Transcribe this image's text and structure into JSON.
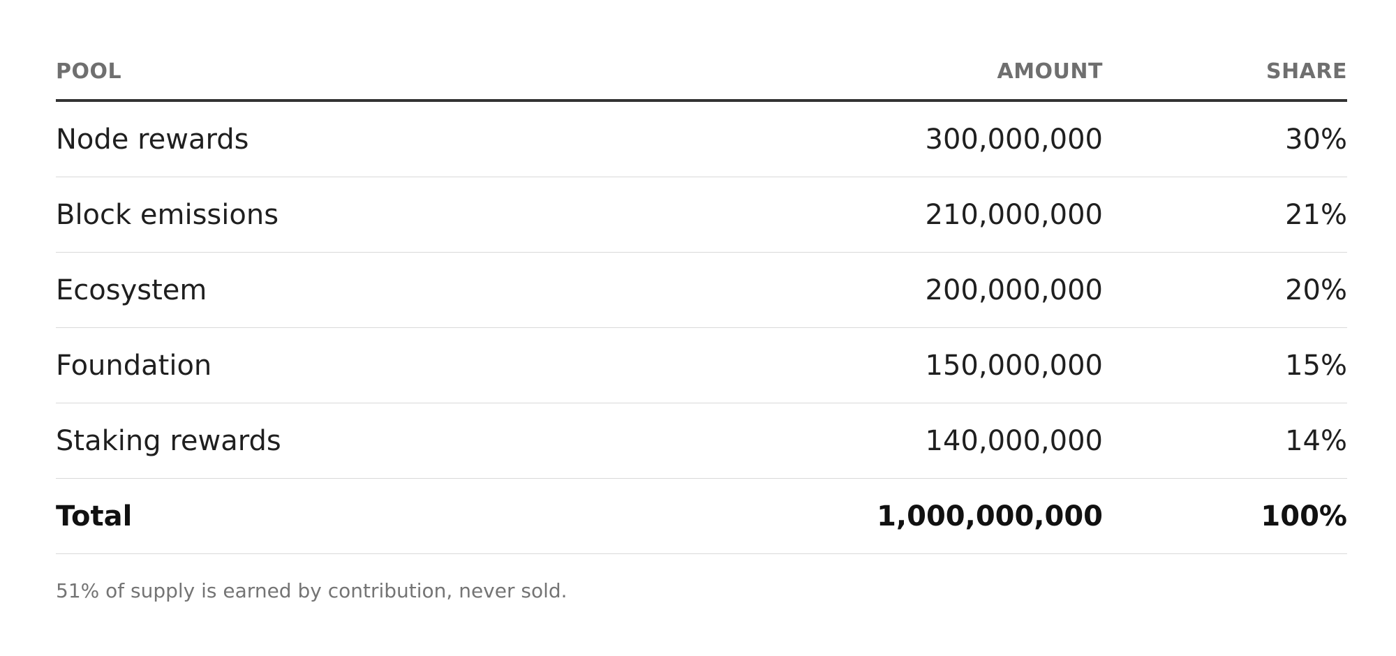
{
  "table": {
    "headers": {
      "pool": "POOL",
      "amount": "AMOUNT",
      "share": "SHARE"
    },
    "rows": [
      {
        "pool": "Node rewards",
        "amount": "300,000,000",
        "share": "30%"
      },
      {
        "pool": "Block emissions",
        "amount": "210,000,000",
        "share": "21%"
      },
      {
        "pool": "Ecosystem",
        "amount": "200,000,000",
        "share": "20%"
      },
      {
        "pool": "Foundation",
        "amount": "150,000,000",
        "share": "15%"
      },
      {
        "pool": "Staking rewards",
        "amount": "140,000,000",
        "share": "14%"
      }
    ],
    "total": {
      "label": "Total",
      "amount": "1,000,000,000",
      "share": "100%"
    }
  },
  "footnote": "51% of supply is earned by contribution, never sold."
}
